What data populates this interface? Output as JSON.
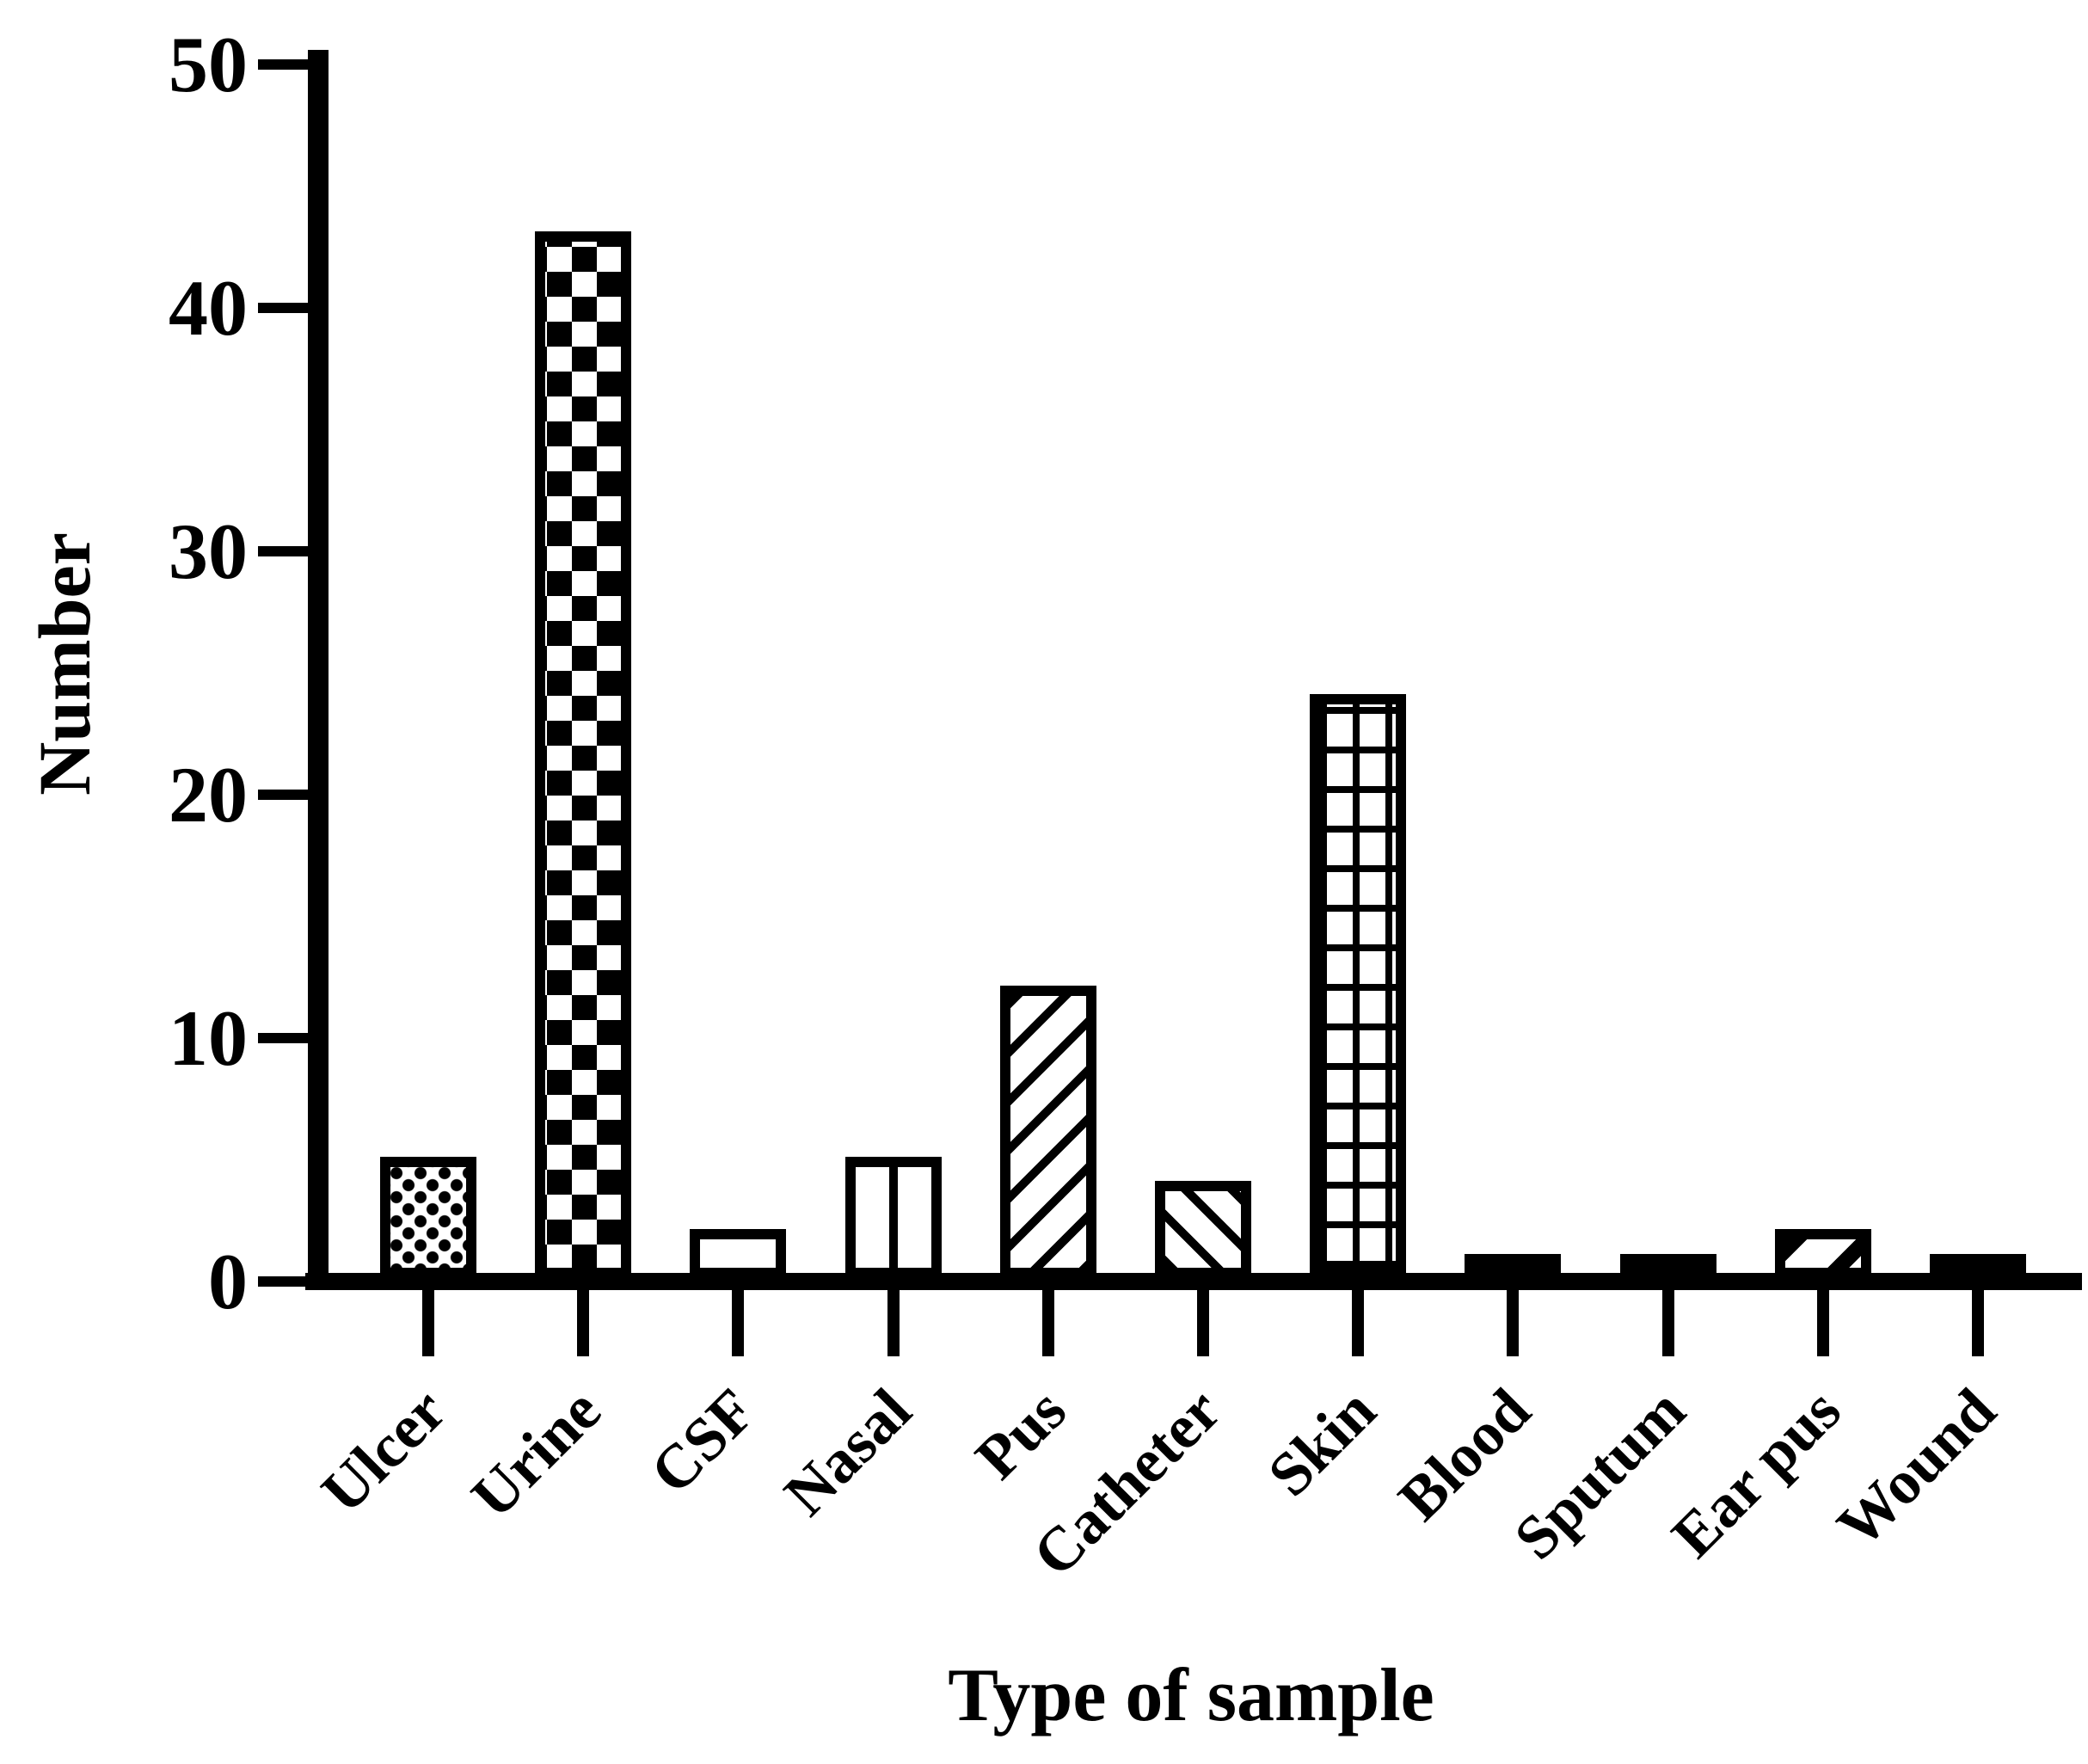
{
  "chart_data": {
    "type": "bar",
    "title": "",
    "xlabel": "Type of sample",
    "ylabel": "Number",
    "ylim": [
      0,
      50
    ],
    "yticks": [
      0,
      10,
      20,
      30,
      40,
      50
    ],
    "grid": false,
    "legend": "none",
    "bar_color": "#000000",
    "background_color": "#ffffff",
    "categories": [
      "Ulcer",
      "Urine",
      "CSF",
      "Nasal",
      "Pus",
      "Catheter",
      "Skin",
      "Blood",
      "Sputum",
      "Ear pus",
      "Wound"
    ],
    "values": [
      5,
      43,
      2,
      5,
      12,
      4,
      24,
      1,
      1,
      2,
      1
    ],
    "patterns": [
      "dotted",
      "checkerboard",
      "open",
      "vertical-stripes",
      "diagonal-up",
      "diagonal-down",
      "grid",
      "solid",
      "solid",
      "diagonal-up-bold",
      "solid"
    ]
  }
}
